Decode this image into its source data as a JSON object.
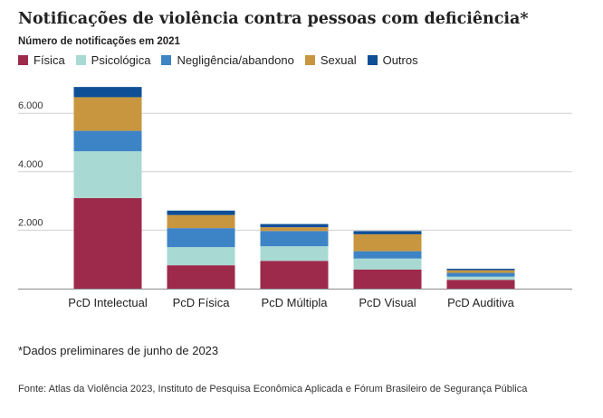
{
  "title": "Notificações de violência contra pessoas com deficiência*",
  "subtitle": "Número de notificações em 2021",
  "footnote": "*Dados preliminares de junho de 2023",
  "source": "Fonte: Atlas da Violência 2023, Instituto de Pesquisa Econômica Aplicada e Fórum Brasileiro de Segurança Pública",
  "chart_data": {
    "type": "bar",
    "stacked": true,
    "title": "Notificações de violência contra pessoas com deficiência*",
    "subtitle": "Número de notificações em 2021",
    "xlabel": "",
    "ylabel": "",
    "ylim": [
      0,
      7000
    ],
    "yticks": [
      2000,
      4000,
      6000
    ],
    "ytick_labels": [
      "2.000",
      "4.000",
      "6.000"
    ],
    "grid": true,
    "legend_position": "top-left",
    "categories": [
      "PcD Intelectual",
      "PcD Física",
      "PcD Múltipla",
      "PcD Visual",
      "PcD Auditiva"
    ],
    "series": [
      {
        "name": "Física",
        "color": "#9e2a4b",
        "values": [
          3100,
          800,
          950,
          650,
          300
        ]
      },
      {
        "name": "Psicológica",
        "color": "#a9d9d3",
        "values": [
          1600,
          620,
          500,
          380,
          110
        ]
      },
      {
        "name": "Negligência/abandono",
        "color": "#3d84c6",
        "values": [
          700,
          650,
          520,
          250,
          130
        ]
      },
      {
        "name": "Sexual",
        "color": "#c8963e",
        "values": [
          1150,
          450,
          130,
          580,
          90
        ]
      },
      {
        "name": "Outros",
        "color": "#0f4f96",
        "values": [
          350,
          150,
          110,
          110,
          50
        ]
      }
    ]
  }
}
